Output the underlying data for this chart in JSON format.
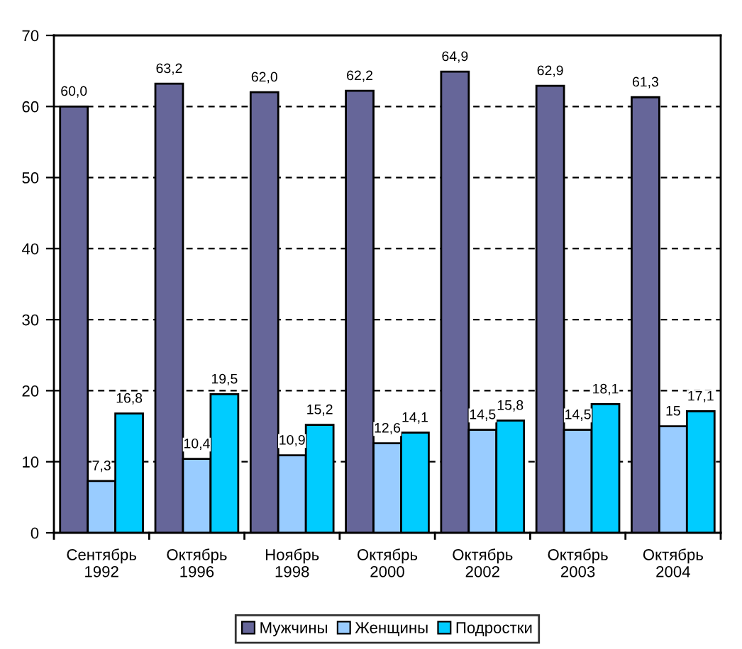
{
  "chart_data": {
    "type": "bar",
    "categories": [
      "Сентябрь\n1992",
      "Октябрь\n1996",
      "Ноябрь\n1998",
      "Октябрь\n2000",
      "Октябрь\n2002",
      "Октябрь\n2003",
      "Октябрь\n2004"
    ],
    "series": [
      {
        "name": "Мужчины",
        "color": "#666699",
        "values": [
          60.0,
          63.2,
          62.0,
          62.2,
          64.9,
          62.9,
          61.3
        ],
        "value_labels": [
          "60,0",
          "63,2",
          "62,0",
          "62,2",
          "64,9",
          "62,9",
          "61,3"
        ]
      },
      {
        "name": "Женщины",
        "color": "#99ccff",
        "values": [
          7.3,
          10.4,
          10.9,
          12.6,
          14.5,
          14.5,
          15
        ],
        "value_labels": [
          "7,3",
          "10,4",
          "10,9",
          "12,6",
          "14,5",
          "14,5",
          "15"
        ]
      },
      {
        "name": "Подростки",
        "color": "#00ccff",
        "values": [
          16.8,
          19.5,
          15.2,
          14.1,
          15.8,
          18.1,
          17.1
        ],
        "value_labels": [
          "16,8",
          "19,5",
          "15,2",
          "14,1",
          "15,8",
          "18,1",
          "17,1"
        ]
      }
    ],
    "ylim": [
      0,
      70
    ],
    "yticks": [
      0,
      10,
      20,
      30,
      40,
      50,
      60,
      70
    ],
    "grid": "y",
    "line_style": "dashed",
    "legend": "bottom"
  }
}
